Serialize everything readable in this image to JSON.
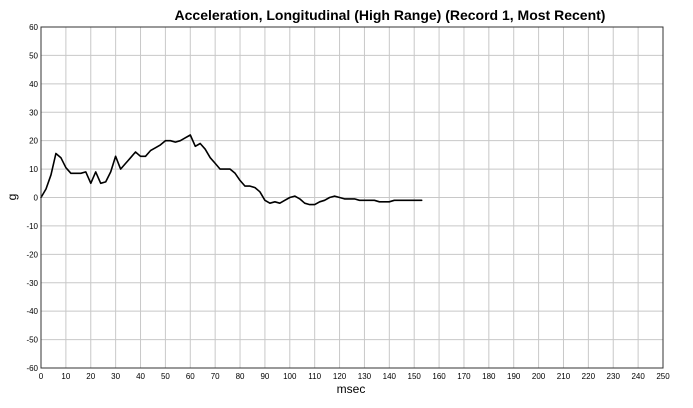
{
  "chart_data": {
    "type": "line",
    "title": "Acceleration, Longitudinal (High Range) (Record 1, Most Recent)",
    "xlabel": "msec",
    "ylabel": "g",
    "xlim": [
      0,
      250
    ],
    "ylim": [
      -60,
      60
    ],
    "x_ticks": [
      0,
      10,
      20,
      30,
      40,
      50,
      60,
      70,
      80,
      90,
      100,
      110,
      120,
      130,
      140,
      150,
      160,
      170,
      180,
      190,
      200,
      210,
      220,
      230,
      240,
      250
    ],
    "y_ticks": [
      60,
      50,
      40,
      30,
      20,
      10,
      0,
      -10,
      -20,
      -30,
      -40,
      -50,
      -60
    ],
    "grid": true,
    "legend": "none",
    "series": [
      {
        "color": "#000000",
        "x": [
          0,
          2,
          4,
          6,
          8,
          10,
          12,
          14,
          16,
          18,
          20,
          22,
          24,
          26,
          28,
          30,
          32,
          34,
          36,
          38,
          40,
          42,
          44,
          46,
          48,
          50,
          52,
          54,
          56,
          58,
          60,
          62,
          64,
          66,
          68,
          70,
          72,
          74,
          76,
          78,
          80,
          82,
          84,
          86,
          88,
          90,
          92,
          94,
          96,
          98,
          100,
          102,
          104,
          106,
          108,
          110,
          112,
          114,
          116,
          118,
          120,
          122,
          124,
          126,
          128,
          130,
          132,
          134,
          136,
          138,
          140,
          142,
          144,
          146,
          148,
          150,
          152,
          153
        ],
        "y": [
          0,
          3,
          8,
          15.5,
          14,
          10.5,
          8.5,
          8.5,
          8.5,
          9,
          5,
          9,
          5,
          5.5,
          9,
          14.5,
          10,
          12,
          14,
          16,
          14.5,
          14.5,
          16.5,
          17.5,
          18.5,
          20,
          20,
          19.5,
          20,
          21,
          22,
          18,
          19,
          17,
          14,
          12,
          10,
          10,
          10,
          8.5,
          6,
          4,
          4,
          3.5,
          2,
          -1,
          -2,
          -1.5,
          -2,
          -1,
          0,
          0.5,
          -0.5,
          -2,
          -2.5,
          -2.5,
          -1.5,
          -1,
          0,
          0.5,
          0,
          -0.5,
          -0.5,
          -0.5,
          -1,
          -1,
          -1,
          -1,
          -1.5,
          -1.5,
          -1.5,
          -1,
          -1,
          -1,
          -1,
          -1,
          -1,
          -1
        ]
      }
    ]
  }
}
